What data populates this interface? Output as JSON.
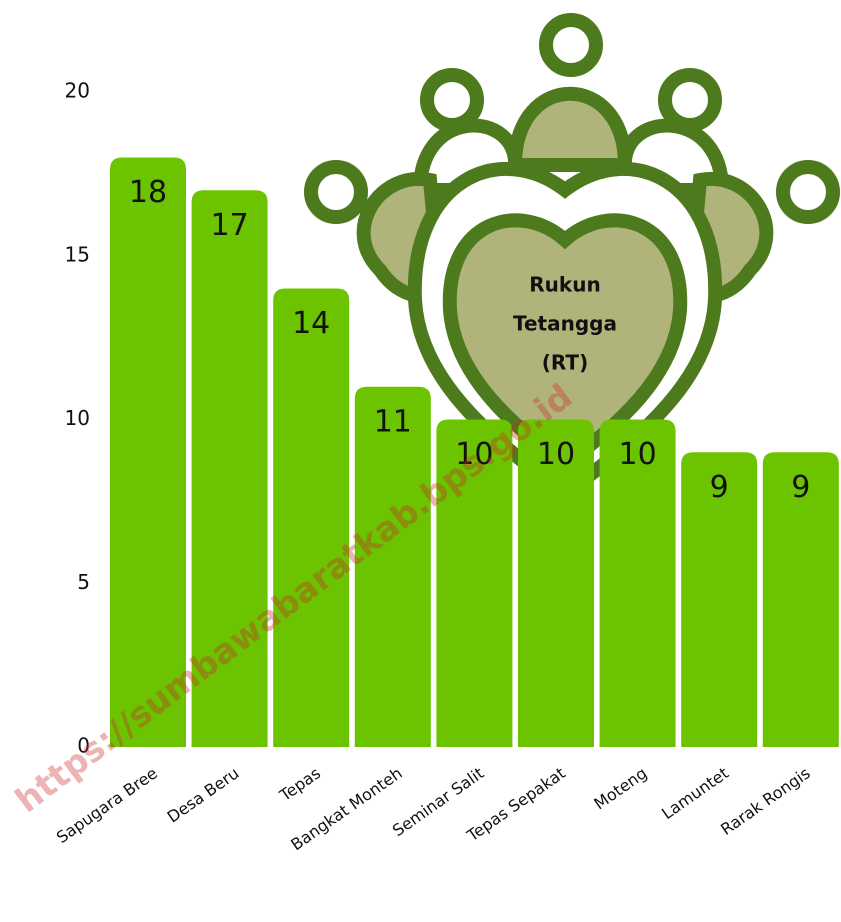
{
  "chart_data": {
    "type": "bar",
    "categories": [
      "Sapugara Bree",
      "Desa Beru",
      "Tepas",
      "Bangkat Monteh",
      "Seminar Salit",
      "Tepas Sepakat",
      "Moteng",
      "Lamuntet",
      "Rarak Rongis"
    ],
    "values": [
      18,
      17,
      14,
      11,
      10,
      10,
      10,
      9,
      9
    ],
    "color": "#6cc400",
    "ylim": [
      0,
      20
    ],
    "yticks": [
      0,
      5,
      10,
      15,
      20
    ],
    "grid": false,
    "annotations": [
      "Rukun",
      "Tetangga",
      "(RT)"
    ],
    "watermark": "https://sumbawabaratkab.bps.go.id"
  }
}
